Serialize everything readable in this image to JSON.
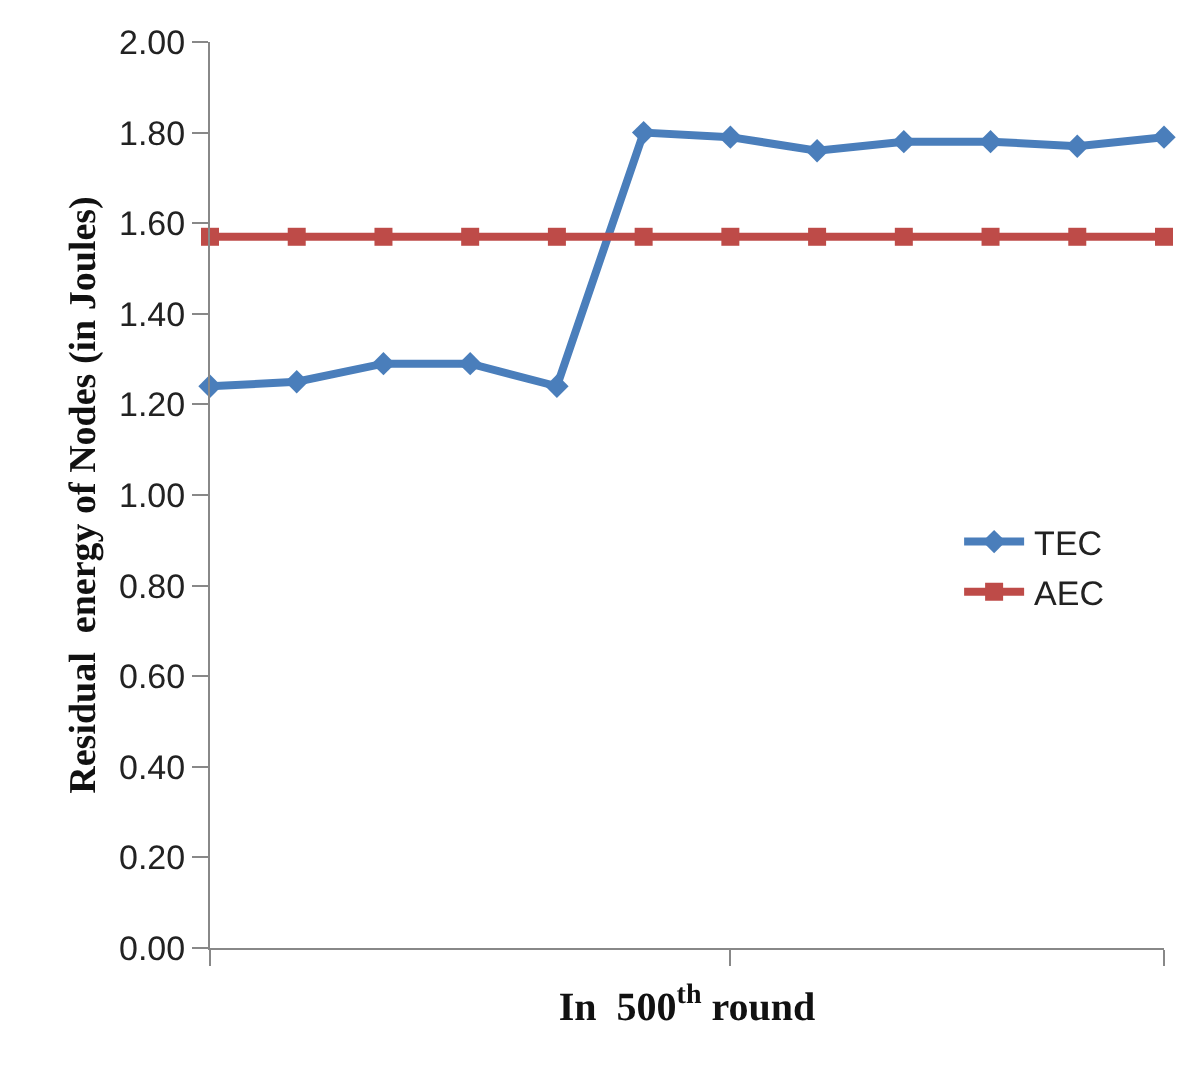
{
  "chart_data": {
    "type": "line",
    "xlabel": "In  500$^{th}$ round",
    "ylabel": "Residual  energy of Nodes (in Joules)",
    "categories": [
      null,
      null,
      null,
      null,
      null,
      null,
      null,
      null,
      null,
      null,
      null,
      null
    ],
    "series": [
      {
        "name": "TEC",
        "color": "#4a7ebb",
        "marker": "diamond",
        "values": [
          1.24,
          1.25,
          1.29,
          1.29,
          1.24,
          1.8,
          1.79,
          1.76,
          1.78,
          1.78,
          1.77,
          1.79
        ]
      },
      {
        "name": "AEC",
        "color": "#be4b48",
        "marker": "square",
        "values": [
          1.57,
          1.57,
          1.57,
          1.57,
          1.57,
          1.57,
          1.57,
          1.57,
          1.57,
          1.57,
          1.57,
          1.57
        ]
      }
    ],
    "ylim": [
      0,
      2
    ],
    "yticks": [
      {
        "value": 0,
        "label": "0.00"
      },
      {
        "value": 0.2,
        "label": "0.20"
      },
      {
        "value": 0.4,
        "label": "0.40"
      },
      {
        "value": 0.6,
        "label": "0.60"
      },
      {
        "value": 0.8,
        "label": "0.80"
      },
      {
        "value": 1,
        "label": "1.00"
      },
      {
        "value": 1.2,
        "label": "1.20"
      },
      {
        "value": 1.4,
        "label": "1.40"
      },
      {
        "value": 1.6,
        "label": "1.60"
      },
      {
        "value": 1.8,
        "label": "1.80"
      },
      {
        "value": 2,
        "label": "2.00"
      }
    ],
    "legend": "right",
    "tick_labels": "y",
    "line_style": "solid"
  }
}
